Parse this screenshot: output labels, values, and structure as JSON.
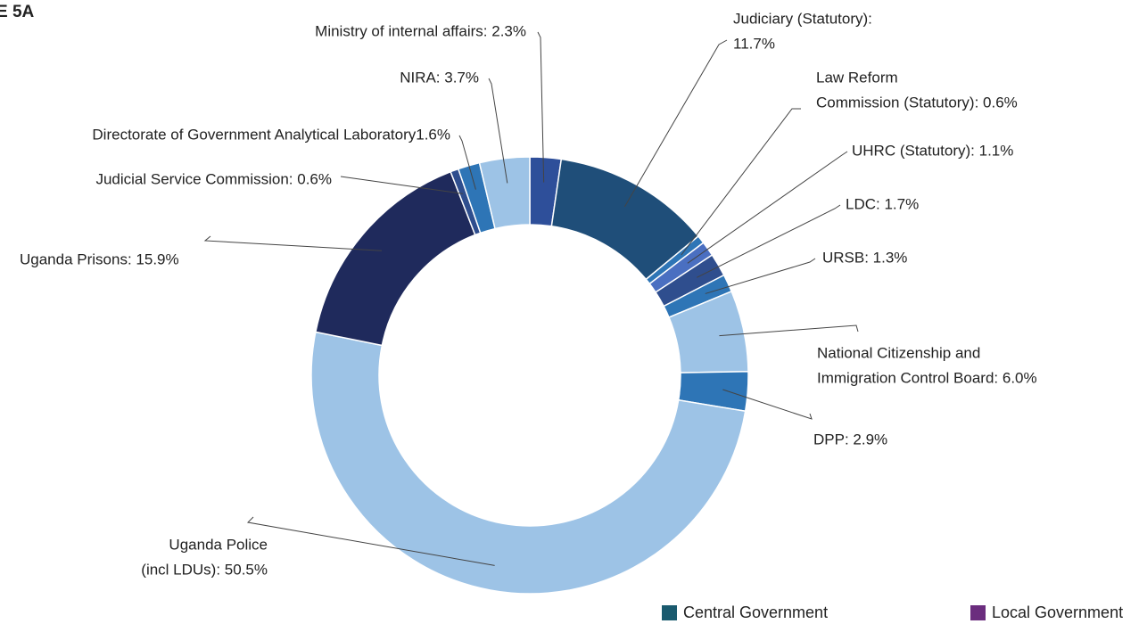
{
  "chart_data": {
    "type": "donut",
    "title": "E 5A",
    "categories": [
      "Ministry of internal affairs",
      "Judiciary (Statutory)",
      "Law Reform Commission (Statutory)",
      "UHRC (Statutory)",
      "LDC",
      "URSB",
      "National Citizenship and Immigration Control Board",
      "DPP",
      "Uganda Police (incl LDUs)",
      "Uganda Prisons",
      "Judicial Service Commission",
      "Directorate of Government Analytical Laboratory",
      "NIRA"
    ],
    "values": [
      2.3,
      11.7,
      0.6,
      1.1,
      1.7,
      1.3,
      6.0,
      2.9,
      50.5,
      15.9,
      0.6,
      1.6,
      3.7
    ],
    "value_labels": [
      [
        "Ministry of internal affairs: 2.3%"
      ],
      [
        "Judiciary (Statutory):",
        "11.7%"
      ],
      [
        "Law Reform",
        "Commission (Statutory): 0.6%"
      ],
      [
        "UHRC (Statutory): 1.1%"
      ],
      [
        "LDC: 1.7%"
      ],
      [
        "URSB: 1.3%"
      ],
      [
        "National Citizenship and",
        "Immigration Control Board: 6.0%"
      ],
      [
        "DPP: 2.9%"
      ],
      [
        "Uganda Police",
        "(incl LDUs): 50.5%"
      ],
      [
        "Uganda Prisons: 15.9%"
      ],
      [
        "Judicial Service Commission: 0.6%"
      ],
      [
        "Directorate of Government Analytical Laboratory1.6%"
      ],
      [
        "NIRA: 3.7%"
      ]
    ],
    "colors": [
      "#2e4f9a",
      "#1f4e79",
      "#2e75b6",
      "#4a6fc1",
      "#2f4e8e",
      "#2e75b6",
      "#9dc3e6",
      "#2e75b6",
      "#9dc3e6",
      "#1f2a5c",
      "#2f4e8e",
      "#2e75b6",
      "#9dc3e6"
    ],
    "legend": [
      {
        "name": "Central Government",
        "color": "#1a5a6e"
      },
      {
        "name": "Local Government",
        "color": "#6b2d7e"
      }
    ]
  }
}
